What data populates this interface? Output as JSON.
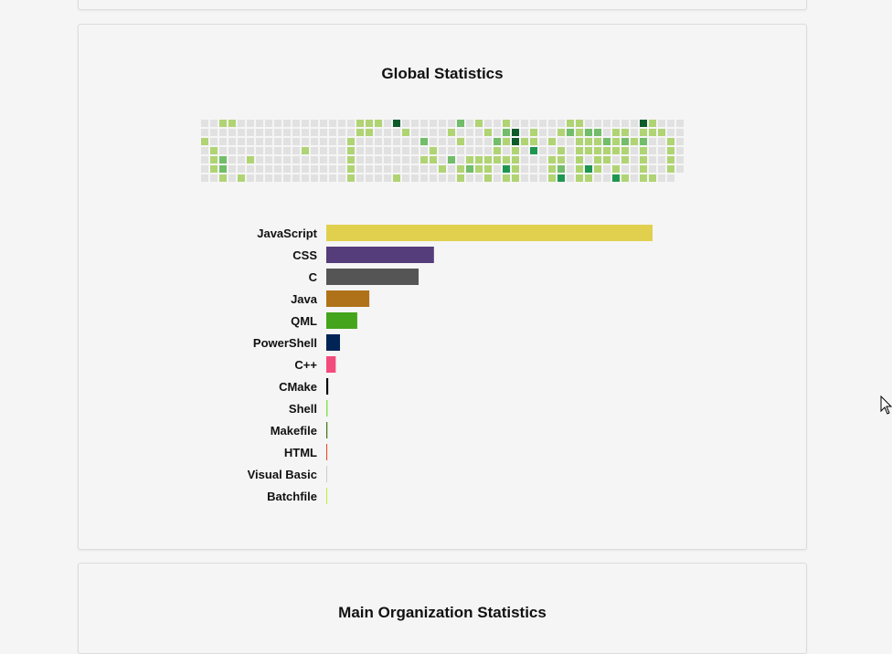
{
  "global_stats": {
    "title": "Global Statistics"
  },
  "main_org_stats": {
    "title": "Main Organization Statistics"
  },
  "colors": {
    "heat_levels": [
      "#e1e1e1",
      "#b0d473",
      "#71bd69",
      "#1f9650",
      "#0c5b2a"
    ]
  },
  "chart_data": [
    {
      "type": "heatmap",
      "title": "",
      "description_levels": "0 = no activity, 4 = highest",
      "columns": 53,
      "rows": 7,
      "matrix": [
        [
          0,
          0,
          1,
          1,
          0,
          0,
          0,
          0,
          0,
          0,
          0,
          0,
          0,
          0,
          0,
          0,
          0,
          1,
          1,
          1,
          0,
          4,
          0,
          0,
          0,
          0,
          0,
          0,
          2,
          0,
          1,
          0,
          0,
          1,
          0,
          0,
          0,
          0,
          0,
          0,
          1,
          1,
          0,
          0,
          0,
          0,
          0,
          0,
          4,
          1,
          0,
          0,
          0
        ],
        [
          0,
          0,
          0,
          0,
          0,
          0,
          0,
          0,
          0,
          0,
          0,
          0,
          0,
          0,
          0,
          0,
          0,
          1,
          1,
          0,
          0,
          0,
          1,
          0,
          0,
          0,
          0,
          1,
          0,
          0,
          0,
          1,
          0,
          2,
          4,
          0,
          1,
          0,
          0,
          1,
          2,
          1,
          2,
          2,
          0,
          1,
          1,
          0,
          1,
          1,
          1,
          0,
          0
        ],
        [
          1,
          0,
          0,
          0,
          0,
          0,
          0,
          0,
          0,
          0,
          0,
          0,
          0,
          0,
          0,
          0,
          1,
          0,
          0,
          0,
          0,
          0,
          0,
          0,
          2,
          0,
          0,
          0,
          1,
          0,
          0,
          0,
          2,
          1,
          4,
          1,
          1,
          0,
          1,
          0,
          0,
          1,
          1,
          1,
          2,
          1,
          2,
          1,
          2,
          0,
          0,
          1,
          0
        ],
        [
          0,
          1,
          0,
          0,
          0,
          0,
          0,
          0,
          0,
          0,
          0,
          1,
          0,
          0,
          0,
          0,
          1,
          0,
          0,
          0,
          0,
          0,
          0,
          0,
          0,
          1,
          0,
          0,
          0,
          0,
          0,
          0,
          1,
          0,
          1,
          0,
          3,
          0,
          0,
          1,
          0,
          1,
          1,
          1,
          1,
          1,
          1,
          0,
          1,
          0,
          0,
          1,
          0
        ],
        [
          0,
          1,
          2,
          0,
          0,
          1,
          0,
          0,
          0,
          0,
          0,
          0,
          0,
          0,
          0,
          0,
          1,
          0,
          0,
          0,
          0,
          0,
          0,
          0,
          1,
          1,
          0,
          2,
          0,
          1,
          1,
          1,
          1,
          1,
          1,
          0,
          0,
          0,
          1,
          1,
          0,
          1,
          0,
          1,
          1,
          0,
          1,
          0,
          1,
          0,
          0,
          1,
          0
        ],
        [
          0,
          1,
          2,
          0,
          0,
          0,
          0,
          0,
          0,
          0,
          0,
          0,
          0,
          0,
          0,
          0,
          1,
          0,
          0,
          0,
          0,
          0,
          0,
          0,
          0,
          0,
          1,
          0,
          1,
          2,
          1,
          1,
          0,
          3,
          1,
          0,
          0,
          0,
          1,
          2,
          0,
          1,
          3,
          1,
          0,
          1,
          0,
          0,
          1,
          0,
          0,
          1,
          0
        ],
        [
          0,
          0,
          1,
          0,
          1,
          0,
          0,
          0,
          0,
          0,
          0,
          0,
          0,
          0,
          0,
          0,
          1,
          0,
          0,
          0,
          0,
          1,
          0,
          0,
          0,
          0,
          0,
          0,
          1,
          0,
          0,
          1,
          0,
          1,
          1,
          0,
          0,
          0,
          1,
          3,
          0,
          1,
          1,
          0,
          0,
          3,
          1,
          0,
          1,
          1,
          0,
          0,
          0
        ]
      ]
    },
    {
      "type": "bar",
      "orientation": "horizontal",
      "title": "",
      "xlabel": "",
      "ylabel": "",
      "xlim": [
        0,
        100
      ],
      "categories": [
        "JavaScript",
        "CSS",
        "C",
        "Java",
        "QML",
        "PowerShell",
        "C++",
        "CMake",
        "Shell",
        "Makefile",
        "HTML",
        "Visual Basic",
        "Batchfile"
      ],
      "values": [
        100,
        33,
        28.3,
        13.2,
        9.5,
        4.2,
        2.9,
        0.6,
        0.4,
        0.35,
        0.3,
        0.15,
        0.1
      ],
      "bar_colors": [
        "#e0d04e",
        "#553c7b",
        "#555555",
        "#b07219",
        "#44a51c",
        "#012456",
        "#f34b7d",
        "#000000",
        "#89e051",
        "#427819",
        "#e34c26",
        "#cccccc",
        "#c1f12e"
      ]
    }
  ]
}
